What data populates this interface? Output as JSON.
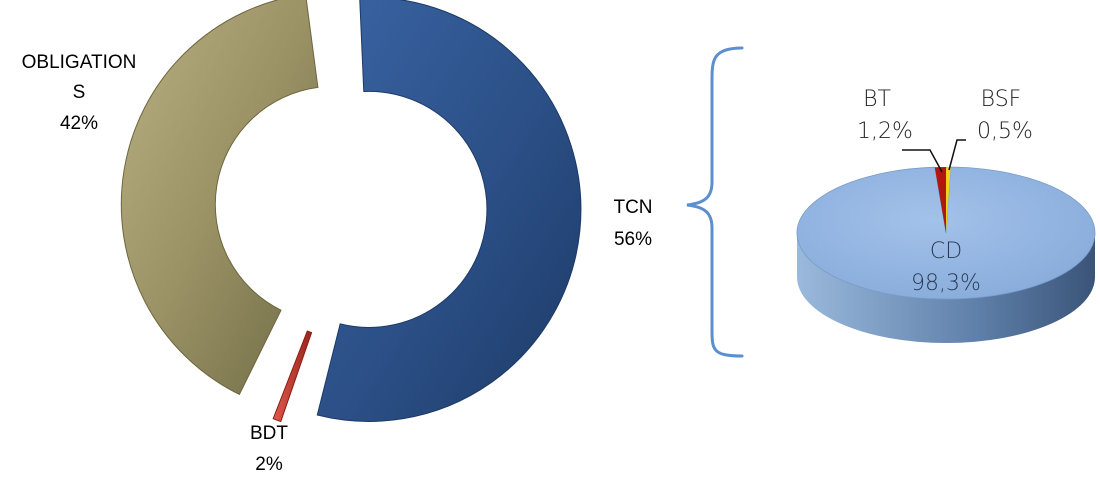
{
  "chart_data": [
    {
      "type": "pie",
      "style": "exploded-donut",
      "categories": [
        "OBLIGATIONS",
        "TCN",
        "BDT"
      ],
      "values": [
        42,
        56,
        2
      ],
      "labels": [
        {
          "line1": "OBLIGATION",
          "line2": "S",
          "value": "42%"
        },
        {
          "line1": "TCN",
          "value": "56%"
        },
        {
          "line1": "BDT",
          "value": "2%"
        }
      ],
      "colors": [
        "#9a9265",
        "#2b4f86",
        "#c0352b"
      ]
    },
    {
      "type": "pie",
      "style": "3d",
      "categories": [
        "CD",
        "BT",
        "BSF"
      ],
      "values": [
        98.3,
        1.2,
        0.5
      ],
      "labels": [
        {
          "name": "CD",
          "value": "98,3%"
        },
        {
          "name": "BT",
          "value": "1,2%"
        },
        {
          "name": "BSF",
          "value": "0,5%"
        }
      ],
      "colors": [
        "#8fb3e0",
        "#b0170f",
        "#f2d21a"
      ]
    }
  ],
  "brace_color": "#5b8fd0"
}
